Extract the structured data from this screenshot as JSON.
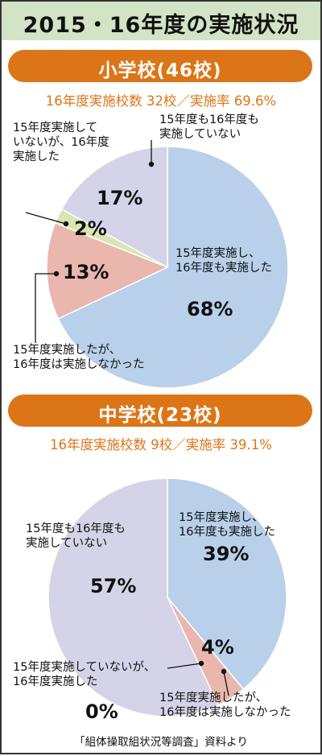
{
  "title": "2015・16年度の実施状況",
  "source": "「組体操取組状況等調査」資料より",
  "chart_data": [
    {
      "type": "pie",
      "title": "小学校(46校)",
      "subtitle": "16年度実施校数 32校／実施率 69.6%",
      "slices": [
        {
          "label_lines": [
            "15年度実施し、",
            "16年度も実施した"
          ],
          "value": 68,
          "display": "68%",
          "color": "#b9d0ea"
        },
        {
          "label_lines": [
            "15年度実施したが、",
            "16年度は実施しなかった"
          ],
          "value": 13,
          "display": "13%",
          "color": "#e9b7ad"
        },
        {
          "label_lines": [
            "15年度実施して",
            "いないが、16年度",
            "実施した"
          ],
          "value": 2,
          "display": "2%",
          "color": "#d8e5b4"
        },
        {
          "label_lines": [
            "15年度も16年度も",
            "実施していない"
          ],
          "value": 17,
          "display": "17%",
          "color": "#d5d3e7"
        }
      ]
    },
    {
      "type": "pie",
      "title": "中学校(23校)",
      "subtitle": "16年度実施校数 9校／実施率 39.1%",
      "slices": [
        {
          "label_lines": [
            "15年度実施し、",
            "16年度も実施した"
          ],
          "value": 39,
          "display": "39%",
          "color": "#b9d0ea"
        },
        {
          "label_lines": [
            "15年度実施したが、",
            "16年度は実施しなかった"
          ],
          "value": 4,
          "display": "4%",
          "color": "#e9b7ad"
        },
        {
          "label_lines": [
            "15年度実施していないが、",
            "16年度実施した"
          ],
          "value": 0,
          "display": "0%",
          "color": "#d8e5b4"
        },
        {
          "label_lines": [
            "15年度も16年度も",
            "実施していない"
          ],
          "value": 57,
          "display": "57%",
          "color": "#d5d3e7"
        }
      ]
    }
  ]
}
